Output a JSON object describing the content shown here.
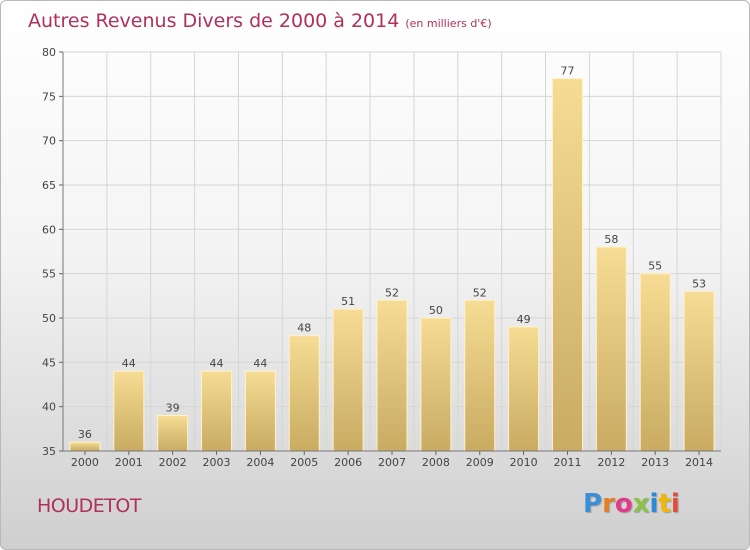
{
  "header": {
    "title": "Autres Revenus Divers de 2000 à 2014",
    "subtitle": "(en milliers d'€)"
  },
  "footer": {
    "place": "HOUDETOT",
    "logo": "Proxiti",
    "logo_colors": [
      "#3a8fd6",
      "#e67e22",
      "#e23b8a",
      "#8bc34a",
      "#2b8ad6",
      "#f2b705",
      "#e04e39"
    ]
  },
  "chart_data": {
    "type": "bar",
    "categories": [
      "2000",
      "2001",
      "2002",
      "2003",
      "2004",
      "2005",
      "2006",
      "2007",
      "2008",
      "2009",
      "2010",
      "2011",
      "2012",
      "2013",
      "2014"
    ],
    "values": [
      36,
      44,
      39,
      44,
      44,
      48,
      51,
      52,
      50,
      52,
      49,
      77,
      58,
      55,
      53
    ],
    "ylim": [
      35,
      80
    ],
    "yticks": [
      35,
      40,
      45,
      50,
      55,
      60,
      65,
      70,
      75,
      80
    ],
    "grid": true,
    "bar_color": "#e8cd85",
    "grid_color": "#d6d6d6"
  }
}
